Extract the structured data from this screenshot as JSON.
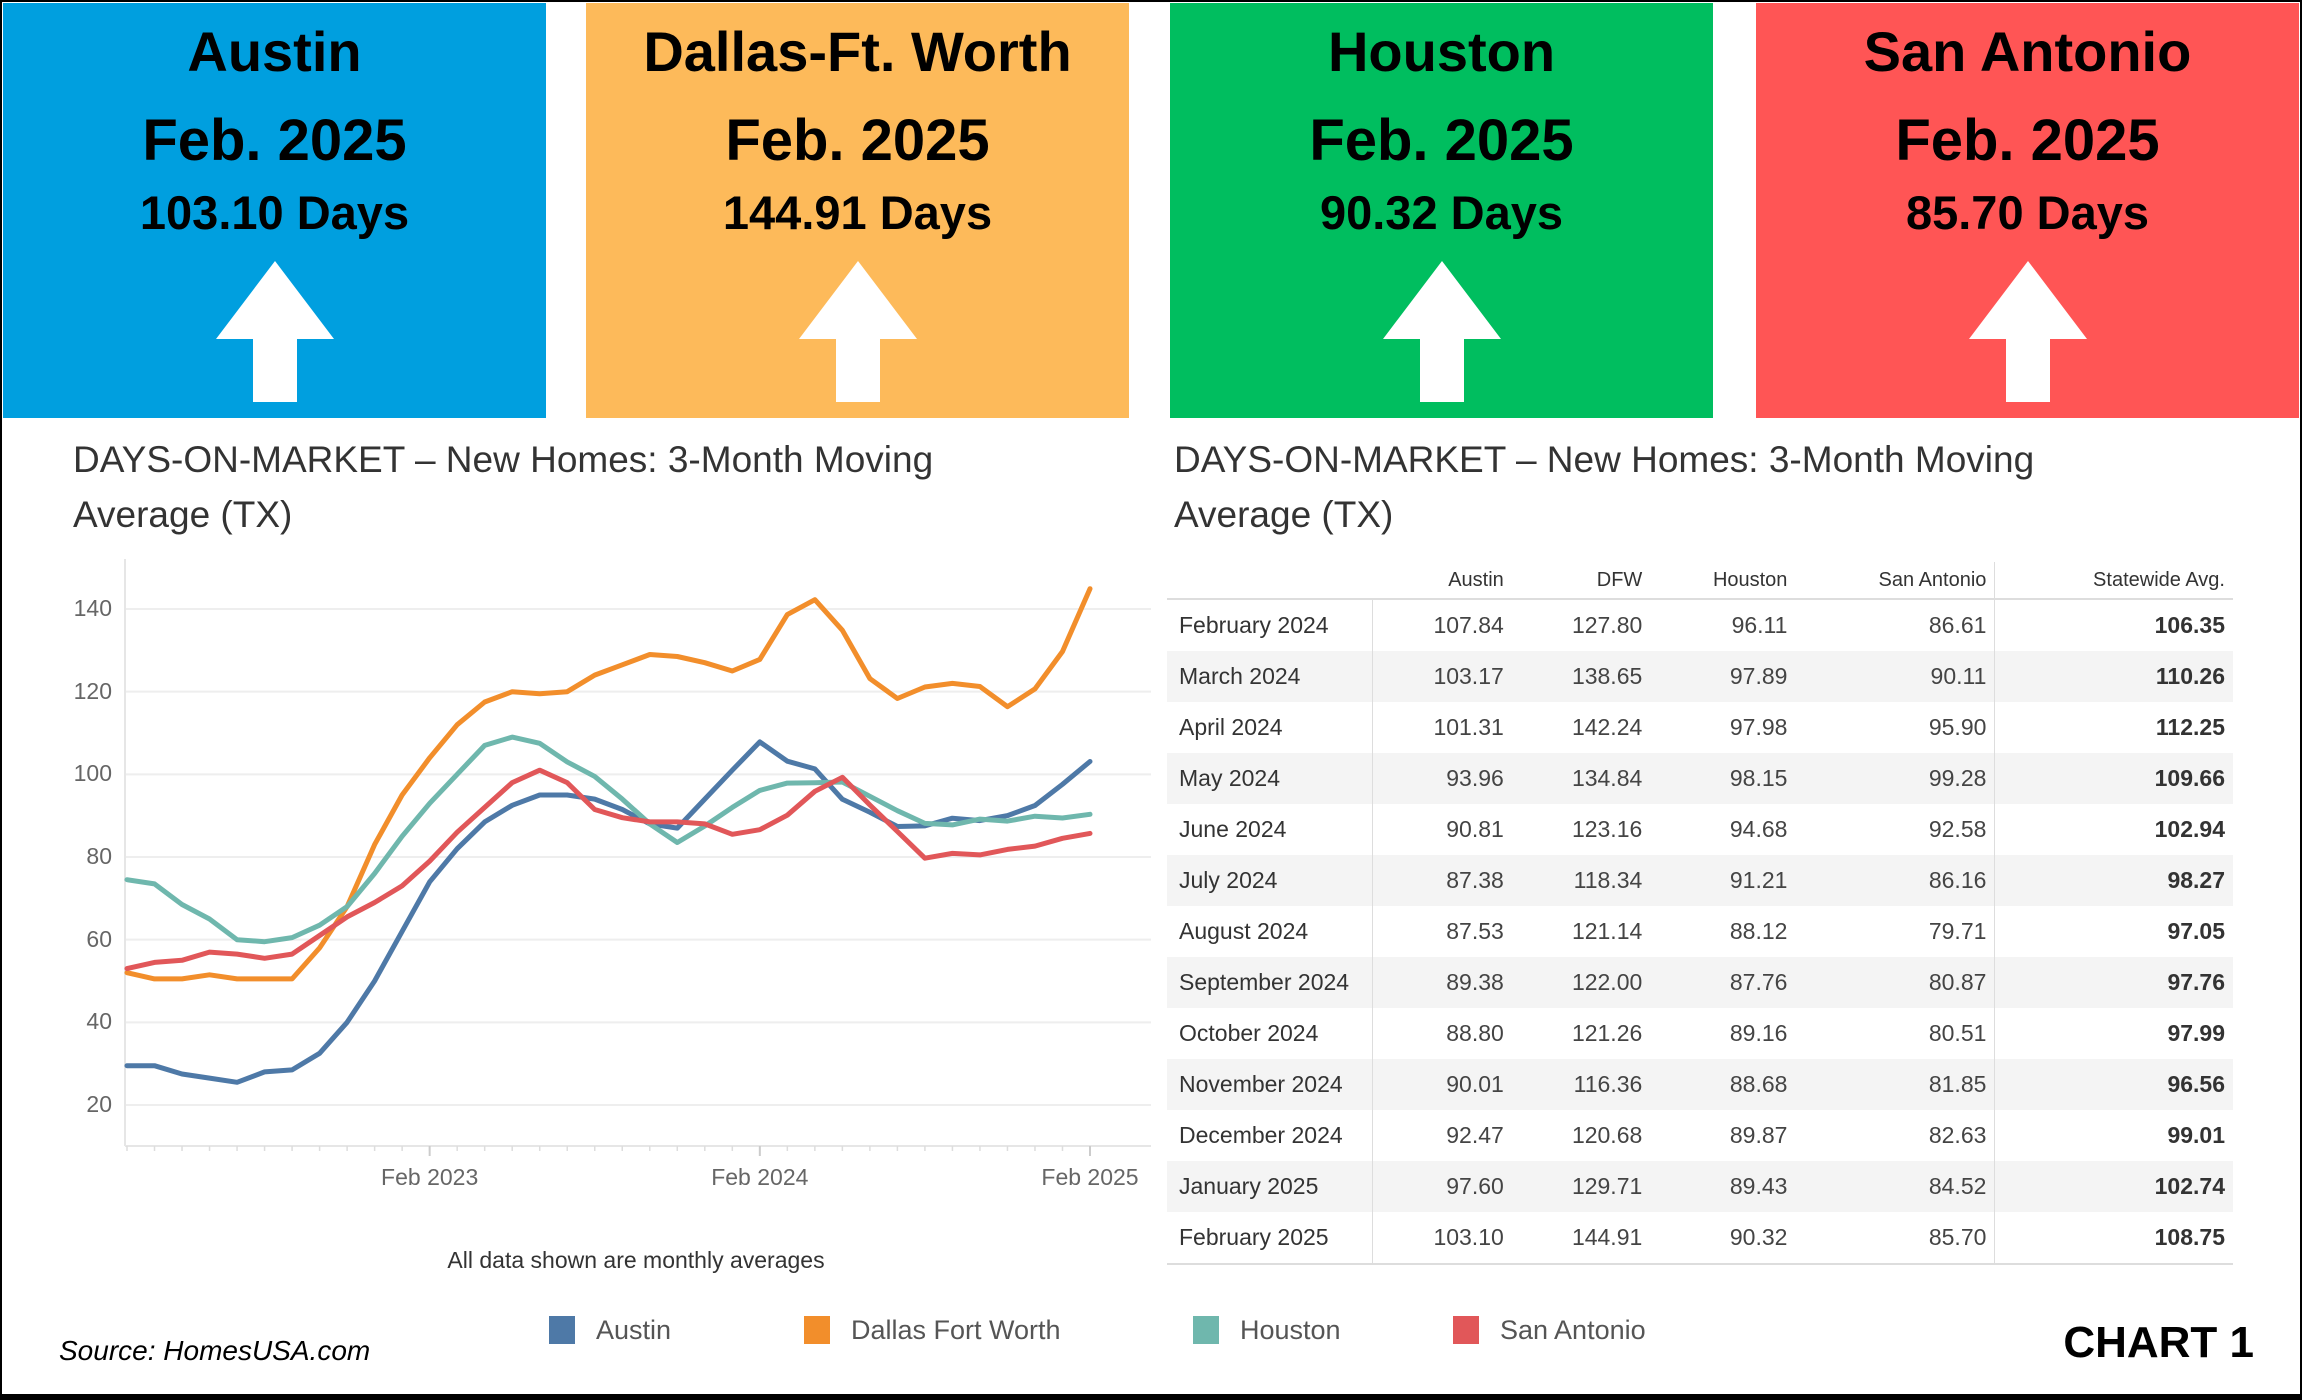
{
  "panels": [
    {
      "city": "Austin",
      "month": "Feb. 2025",
      "days": "103.10 Days",
      "color": "#009FDF",
      "icon": "arrow-up-icon"
    },
    {
      "city": "Dallas-Ft. Worth",
      "month": "Feb. 2025",
      "days": "144.91 Days",
      "color": "#FDBA5A",
      "icon": "arrow-up-icon"
    },
    {
      "city": "Houston",
      "month": "Feb. 2025",
      "days": "90.32 Days",
      "color": "#00BE5F",
      "icon": "arrow-up-icon"
    },
    {
      "city": "San Antonio",
      "month": "Feb. 2025",
      "days": "85.70 Days",
      "color": "#FF5555",
      "icon": "arrow-up-icon"
    }
  ],
  "chart_title": "DAYS-ON-MARKET – New Homes: 3-Month Moving Average (TX)",
  "table_title": "DAYS-ON-MARKET – New Homes:  3-Month Moving Average (TX)",
  "chart_data": {
    "type": "line",
    "title": "DAYS-ON-MARKET – New Homes: 3-Month Moving Average (TX)",
    "note": "All data shown are monthly averages",
    "x": [
      "Mar 2022",
      "Apr 2022",
      "May 2022",
      "Jun 2022",
      "Jul 2022",
      "Aug 2022",
      "Sep 2022",
      "Oct 2022",
      "Nov 2022",
      "Dec 2022",
      "Jan 2023",
      "Feb 2023",
      "Mar 2023",
      "Apr 2023",
      "May 2023",
      "Jun 2023",
      "Jul 2023",
      "Aug 2023",
      "Sep 2023",
      "Oct 2023",
      "Nov 2023",
      "Dec 2023",
      "Jan 2024",
      "Feb 2024",
      "Mar 2024",
      "Apr 2024",
      "May 2024",
      "Jun 2024",
      "Jul 2024",
      "Aug 2024",
      "Sep 2024",
      "Oct 2024",
      "Nov 2024",
      "Dec 2024",
      "Jan 2025",
      "Feb 2025"
    ],
    "x_ticks": [
      "Feb 2023",
      "Feb 2024",
      "Feb 2025"
    ],
    "y_ticks": [
      20,
      40,
      60,
      80,
      100,
      120,
      140
    ],
    "ylim": [
      10,
      150
    ],
    "grid": true,
    "legend_position": "bottom",
    "series": [
      {
        "name": "Austin",
        "color": "#4E79A7",
        "values": [
          29.5,
          29.5,
          27.5,
          26.5,
          25.5,
          28,
          28.5,
          32.5,
          40,
          50,
          62,
          74,
          82,
          88.5,
          92.5,
          95,
          95,
          94,
          91.5,
          88,
          87,
          94,
          101,
          107.84,
          103.17,
          101.31,
          93.96,
          90.81,
          87.38,
          87.53,
          89.38,
          88.8,
          90.01,
          92.47,
          97.6,
          103.1
        ]
      },
      {
        "name": "Dallas Fort Worth",
        "color": "#F28E2B",
        "values": [
          52,
          50.5,
          50.5,
          51.5,
          50.5,
          50.5,
          50.5,
          58,
          68,
          83,
          95,
          104,
          112,
          117.5,
          120,
          119.5,
          120,
          124,
          126.5,
          129,
          128.5,
          127,
          125,
          127.8,
          138.65,
          142.24,
          134.84,
          123.16,
          118.34,
          121.14,
          122.0,
          121.26,
          116.36,
          120.68,
          129.71,
          144.91
        ]
      },
      {
        "name": "Houston",
        "color": "#6FB7AD",
        "values": [
          74.5,
          73.5,
          68.5,
          65,
          60,
          59.5,
          60.5,
          63.5,
          68,
          76,
          85,
          93,
          100,
          107,
          109,
          107.5,
          103,
          99.5,
          94,
          88,
          83.5,
          87.5,
          92,
          96.11,
          97.89,
          97.98,
          98.15,
          94.68,
          91.21,
          88.12,
          87.76,
          89.16,
          88.68,
          89.87,
          89.43,
          90.32
        ]
      },
      {
        "name": "San Antonio",
        "color": "#E15759",
        "values": [
          53,
          54.5,
          55,
          57,
          56.5,
          55.5,
          56.5,
          61,
          65.5,
          69,
          73,
          79,
          86,
          92,
          98,
          101,
          98,
          91.5,
          89.5,
          88.5,
          88.5,
          88,
          85.5,
          86.61,
          90.11,
          95.9,
          99.28,
          92.58,
          86.16,
          79.71,
          80.87,
          80.51,
          81.85,
          82.63,
          84.52,
          85.7
        ]
      }
    ]
  },
  "table": {
    "columns": [
      "",
      "Austin",
      "DFW",
      "Houston",
      "San Antonio",
      "Statewide Avg."
    ],
    "rows": [
      [
        "February 2024",
        "107.84",
        "127.80",
        "96.11",
        "86.61",
        "106.35"
      ],
      [
        "March 2024",
        "103.17",
        "138.65",
        "97.89",
        "90.11",
        "110.26"
      ],
      [
        "April 2024",
        "101.31",
        "142.24",
        "97.98",
        "95.90",
        "112.25"
      ],
      [
        "May 2024",
        "93.96",
        "134.84",
        "98.15",
        "99.28",
        "109.66"
      ],
      [
        "June 2024",
        "90.81",
        "123.16",
        "94.68",
        "92.58",
        "102.94"
      ],
      [
        "July 2024",
        "87.38",
        "118.34",
        "91.21",
        "86.16",
        "98.27"
      ],
      [
        "August 2024",
        "87.53",
        "121.14",
        "88.12",
        "79.71",
        "97.05"
      ],
      [
        "September 2024",
        "89.38",
        "122.00",
        "87.76",
        "80.87",
        "97.76"
      ],
      [
        "October 2024",
        "88.80",
        "121.26",
        "89.16",
        "80.51",
        "97.99"
      ],
      [
        "November 2024",
        "90.01",
        "116.36",
        "88.68",
        "81.85",
        "96.56"
      ],
      [
        "December 2024",
        "92.47",
        "120.68",
        "89.87",
        "82.63",
        "99.01"
      ],
      [
        "January 2025",
        "97.60",
        "129.71",
        "89.43",
        "84.52",
        "102.74"
      ],
      [
        "February 2025",
        "103.10",
        "144.91",
        "90.32",
        "85.70",
        "108.75"
      ]
    ]
  },
  "source": "Source: HomesUSA.com",
  "chart_label": "CHART 1"
}
